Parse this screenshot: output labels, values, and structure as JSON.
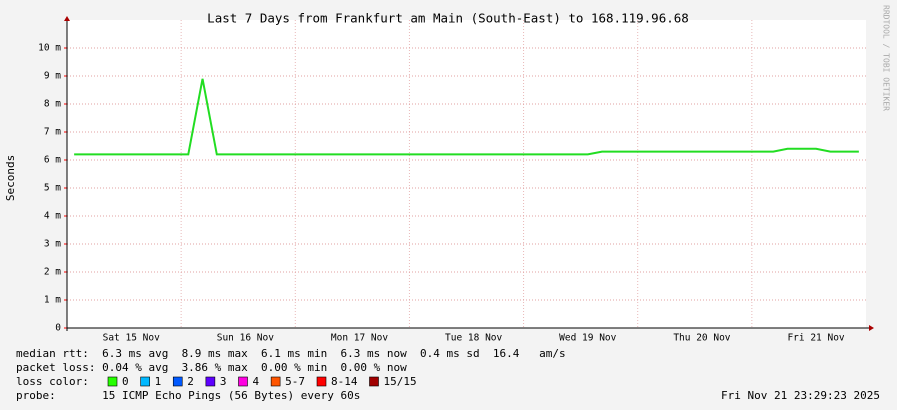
{
  "chart_data": {
    "type": "line",
    "title": "Last 7 Days from Frankfurt am Main (South-East) to 168.119.96.68",
    "y_label": "Seconds",
    "side_text": "RRDTOOL / TOBI OETIKER",
    "categories": [
      null,
      null,
      null,
      null,
      "Sat 15 Nov",
      null,
      null,
      null,
      null,
      null,
      null,
      null,
      "Sun 16 Nov",
      null,
      null,
      null,
      null,
      null,
      null,
      null,
      "Mon 17 Nov",
      null,
      null,
      null,
      null,
      null,
      null,
      null,
      "Tue 18 Nov",
      null,
      null,
      null,
      null,
      null,
      null,
      null,
      "Wed 19 Nov",
      null,
      null,
      null,
      null,
      null,
      null,
      null,
      "Thu 20 Nov",
      null,
      null,
      null,
      null,
      null,
      null,
      null,
      "Fri 21 Nov",
      null,
      null,
      null
    ],
    "values": [
      0.0062,
      0.0062,
      0.0062,
      0.0062,
      0.0062,
      0.0062,
      0.0062,
      0.0062,
      0.0062,
      0.0089,
      0.0062,
      0.0062,
      0.0062,
      0.0062,
      0.0062,
      0.0062,
      0.0062,
      0.0062,
      0.0062,
      0.0062,
      0.0062,
      0.0062,
      0.0062,
      0.0062,
      0.0062,
      0.0062,
      0.0062,
      0.0062,
      0.0062,
      0.0062,
      0.0062,
      0.0062,
      0.0062,
      0.0062,
      0.0062,
      0.0062,
      0.0062,
      0.0063,
      0.0063,
      0.0063,
      0.0063,
      0.0063,
      0.0063,
      0.0063,
      0.0063,
      0.0063,
      0.0063,
      0.0063,
      0.0063,
      0.0063,
      0.0064,
      0.0064,
      0.0064,
      0.0063,
      0.0063,
      0.0063
    ],
    "color": "#22dd22",
    "ylim": [
      0,
      0.011
    ],
    "yticks": [
      {
        "value": 0,
        "label": "0"
      },
      {
        "value": 0.001,
        "label": "1 m"
      },
      {
        "value": 0.002,
        "label": "2 m"
      },
      {
        "value": 0.003,
        "label": "3 m"
      },
      {
        "value": 0.004,
        "label": "4 m"
      },
      {
        "value": 0.005,
        "label": "5 m"
      },
      {
        "value": 0.006,
        "label": "6 m"
      },
      {
        "value": 0.007,
        "label": "7 m"
      },
      {
        "value": 0.008,
        "label": "8 m"
      },
      {
        "value": 0.009,
        "label": "9 m"
      },
      {
        "value": 0.01,
        "label": "10 m"
      }
    ],
    "grid": true
  },
  "stats": {
    "median_rtt": "median rtt:  6.3 ms avg  8.9 ms max  6.1 ms min  6.3 ms now  0.4 ms sd  16.4   am/s",
    "packet_loss": "packet loss: 0.04 % avg  3.86 % max  0.00 % min  0.00 % now",
    "loss_color_label": "loss color:",
    "loss_colors": [
      {
        "label": "0",
        "color": "#26ff00"
      },
      {
        "label": "1",
        "color": "#00b8ff"
      },
      {
        "label": "2",
        "color": "#0059ff"
      },
      {
        "label": "3",
        "color": "#5e00ff"
      },
      {
        "label": "4",
        "color": "#ff00e1"
      },
      {
        "label": "5-7",
        "color": "#ff5500"
      },
      {
        "label": "8-14",
        "color": "#ff0000"
      },
      {
        "label": "15/15",
        "color": "#a10000"
      }
    ],
    "probe": "probe:       15 ICMP Echo Pings (56 Bytes) every 60s",
    "timestamp": "Fri Nov 21 23:29:23 2025"
  }
}
